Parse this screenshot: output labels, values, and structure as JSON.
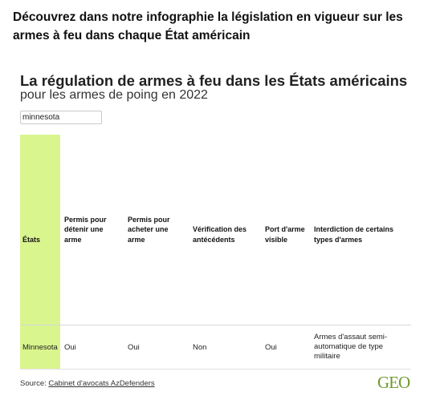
{
  "headline": "Découvrez dans notre infographie la législation en vigueur sur les armes à feu dans chaque État américain",
  "chart": {
    "title": "La régulation de armes à feu dans les États américains",
    "subtitle": "pour les armes de poing en 2022",
    "search_value": "minnesota",
    "columns": [
      "États",
      "Permis pour détenir une arme",
      "Permis pour acheter une arme",
      "Vérification des antécédents",
      "Port d'arme visible",
      "Interdiction de certains types d'armes"
    ],
    "highlight_color": "#d9f58e",
    "rows": [
      [
        "Minnesota",
        "Oui",
        "Oui",
        "Non",
        "Oui",
        "Armes d'assaut semi-automatique de type militaire"
      ]
    ],
    "source_label": "Source: ",
    "source_link": "Cabinet d'avocats AzDefenders"
  },
  "brand": {
    "logo_text": "GEO",
    "logo_color": "#6f9a2c"
  }
}
